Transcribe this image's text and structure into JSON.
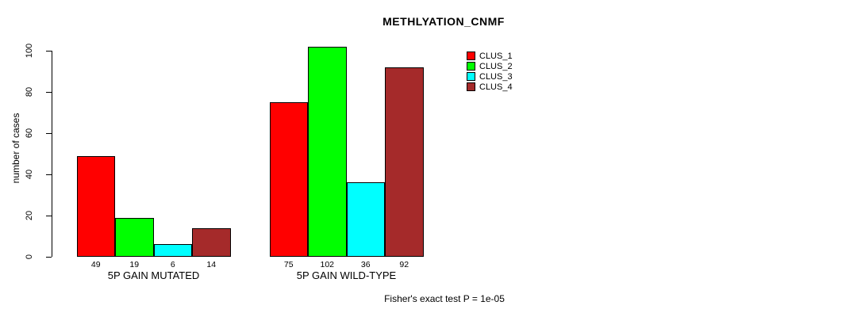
{
  "chart_data": {
    "type": "bar",
    "title": "METHLYATION_CNMF",
    "xlabel": "",
    "ylabel": "number of cases",
    "ylim": [
      0,
      100
    ],
    "yticks": [
      0,
      20,
      40,
      60,
      80,
      100
    ],
    "grid": false,
    "background": "#FFFFFF",
    "categories": [
      "5P GAIN MUTATED",
      "5P GAIN WILD-TYPE"
    ],
    "series": [
      {
        "name": "CLUS_1",
        "color": "#FF0000",
        "values": [
          49,
          75
        ]
      },
      {
        "name": "CLUS_2",
        "color": "#00FF00",
        "values": [
          19,
          102
        ]
      },
      {
        "name": "CLUS_3",
        "color": "#00FFFF",
        "values": [
          6,
          36
        ]
      },
      {
        "name": "CLUS_4",
        "color": "#A52A2A",
        "values": [
          14,
          92
        ]
      }
    ],
    "bar_value_labels": [
      [
        49,
        19,
        6,
        14
      ],
      [
        75,
        102,
        36,
        92
      ]
    ],
    "legend": {
      "position": "top-right",
      "entries": [
        "CLUS_1",
        "CLUS_2",
        "CLUS_3",
        "CLUS_4"
      ]
    },
    "annotation": "Fisher's exact test P = 1e-05"
  }
}
